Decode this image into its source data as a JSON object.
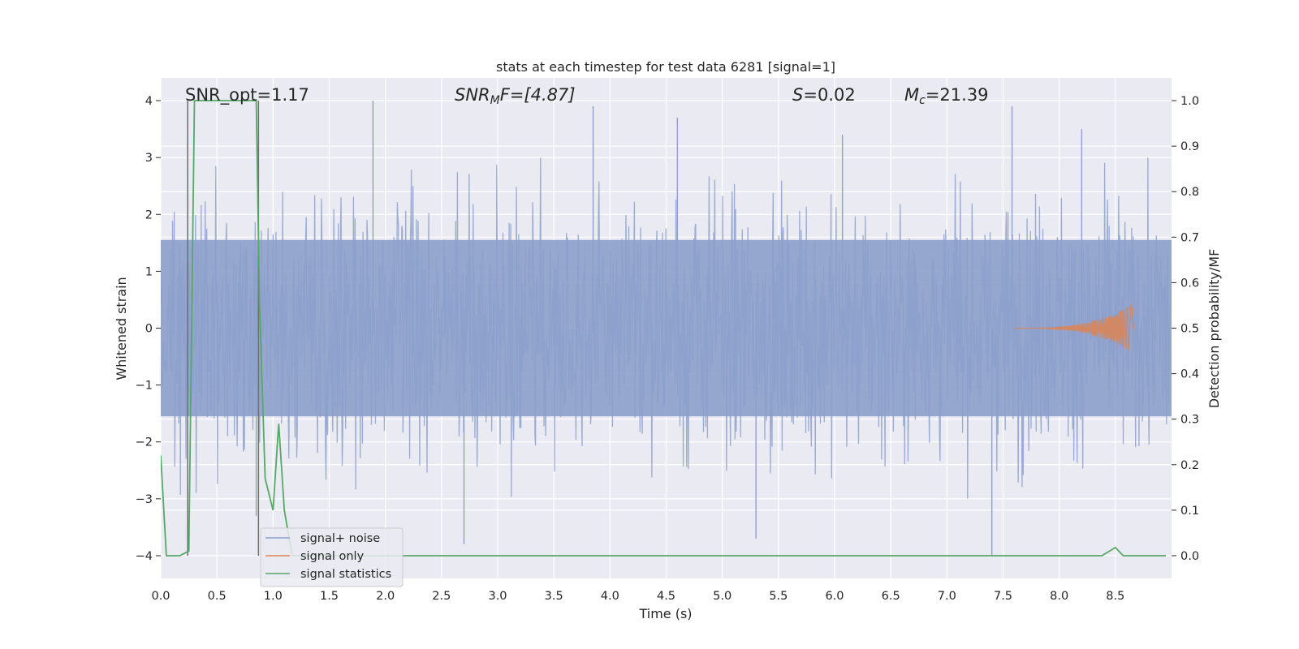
{
  "chart_data": {
    "type": "line",
    "title": "stats at each timestep for test data 6281 [signal=1]",
    "xlabel": "Time (s)",
    "ylabel": "Whitened strain",
    "y2label": "Detection probability/MF",
    "xlim": [
      0.0,
      9.0
    ],
    "ylim": [
      -4.4,
      4.4
    ],
    "y2lim": [
      -0.05,
      1.05
    ],
    "xticks": [
      "0.0",
      "0.5",
      "1.0",
      "1.5",
      "2.0",
      "2.5",
      "3.0",
      "3.5",
      "4.0",
      "4.5",
      "5.0",
      "5.5",
      "6.0",
      "6.5",
      "7.0",
      "7.5",
      "8.0",
      "8.5"
    ],
    "xtick_values": [
      0.0,
      0.5,
      1.0,
      1.5,
      2.0,
      2.5,
      3.0,
      3.5,
      4.0,
      4.5,
      5.0,
      5.5,
      6.0,
      6.5,
      7.0,
      7.5,
      8.0,
      8.5
    ],
    "yticks": [
      "4",
      "3",
      "2",
      "1",
      "0",
      "−1",
      "−2",
      "−3",
      "−4"
    ],
    "ytick_values": [
      4,
      3,
      2,
      1,
      0,
      -1,
      -2,
      -3,
      -4
    ],
    "y2ticks": [
      "1.0",
      "0.9",
      "0.8",
      "0.7",
      "0.6",
      "0.5",
      "0.4",
      "0.3",
      "0.2",
      "0.1",
      "0.0"
    ],
    "y2tick_values": [
      1.0,
      0.9,
      0.8,
      0.7,
      0.6,
      0.5,
      0.4,
      0.3,
      0.2,
      0.1,
      0.0
    ],
    "annotations": {
      "snr_opt": "SNR_opt=1.17",
      "snr_mf_base": "SNR",
      "snr_mf_sub": "M",
      "snr_mf_rest": "F=[4.87]",
      "s_var": "S",
      "s_rest": "=0.02",
      "mc_var": "M",
      "mc_sub": "c",
      "mc_rest": "=21.39"
    },
    "legend": {
      "placement": "lower-left",
      "entries": [
        {
          "label": "signal+ noise",
          "color": "#8da0cb"
        },
        {
          "label": "signal only",
          "color": "#dd8452"
        },
        {
          "label": "signal statistics",
          "color": "#55a868"
        }
      ]
    },
    "series": [
      {
        "name": "signal+ noise",
        "axis": "left",
        "description": "whitened strain, dense noise roughly within ±2.5 with spikes to ±4",
        "color": "#8da0cb",
        "x_range": [
          0.0,
          9.0
        ],
        "typical_amplitude": 2.0,
        "peak_values": [
          {
            "x": 0.24,
            "y": 4.0
          },
          {
            "x": 0.24,
            "y": -3.5
          },
          {
            "x": 0.85,
            "y": -3.3
          },
          {
            "x": 1.89,
            "y": 4.0
          },
          {
            "x": 2.7,
            "y": -3.8
          },
          {
            "x": 3.85,
            "y": 3.9
          },
          {
            "x": 4.6,
            "y": 3.7
          },
          {
            "x": 5.3,
            "y": -3.7
          },
          {
            "x": 6.07,
            "y": 3.4
          },
          {
            "x": 7.4,
            "y": -4.0
          },
          {
            "x": 7.58,
            "y": 3.9
          },
          {
            "x": 8.2,
            "y": 3.5
          }
        ]
      },
      {
        "name": "signal only",
        "axis": "left",
        "color": "#dd8452",
        "description": "chirp waveform growing toward merger",
        "x_start": 7.6,
        "x_end": 8.67,
        "peak_amplitude": 0.45
      },
      {
        "name": "signal statistics",
        "axis": "right",
        "color": "#55a868",
        "x": [
          0.0,
          0.05,
          0.17,
          0.21,
          0.25,
          0.3,
          0.85,
          0.88,
          0.93,
          1.0,
          1.05,
          1.1,
          1.17,
          1.2,
          8.38,
          8.5,
          8.57,
          8.95
        ],
        "y": [
          0.22,
          0.0,
          0.0,
          0.005,
          0.01,
          1.0,
          1.0,
          0.55,
          0.17,
          0.1,
          0.29,
          0.1,
          0.0,
          0.0,
          0.0,
          0.018,
          0.0,
          0.0
        ]
      },
      {
        "name": "detection marker",
        "axis": "right",
        "color": "#6e6e6e",
        "description": "thin vertical markers at detection onset/offset",
        "x": [
          0.24,
          0.87
        ],
        "y_range": [
          0.0,
          1.0
        ]
      }
    ]
  }
}
